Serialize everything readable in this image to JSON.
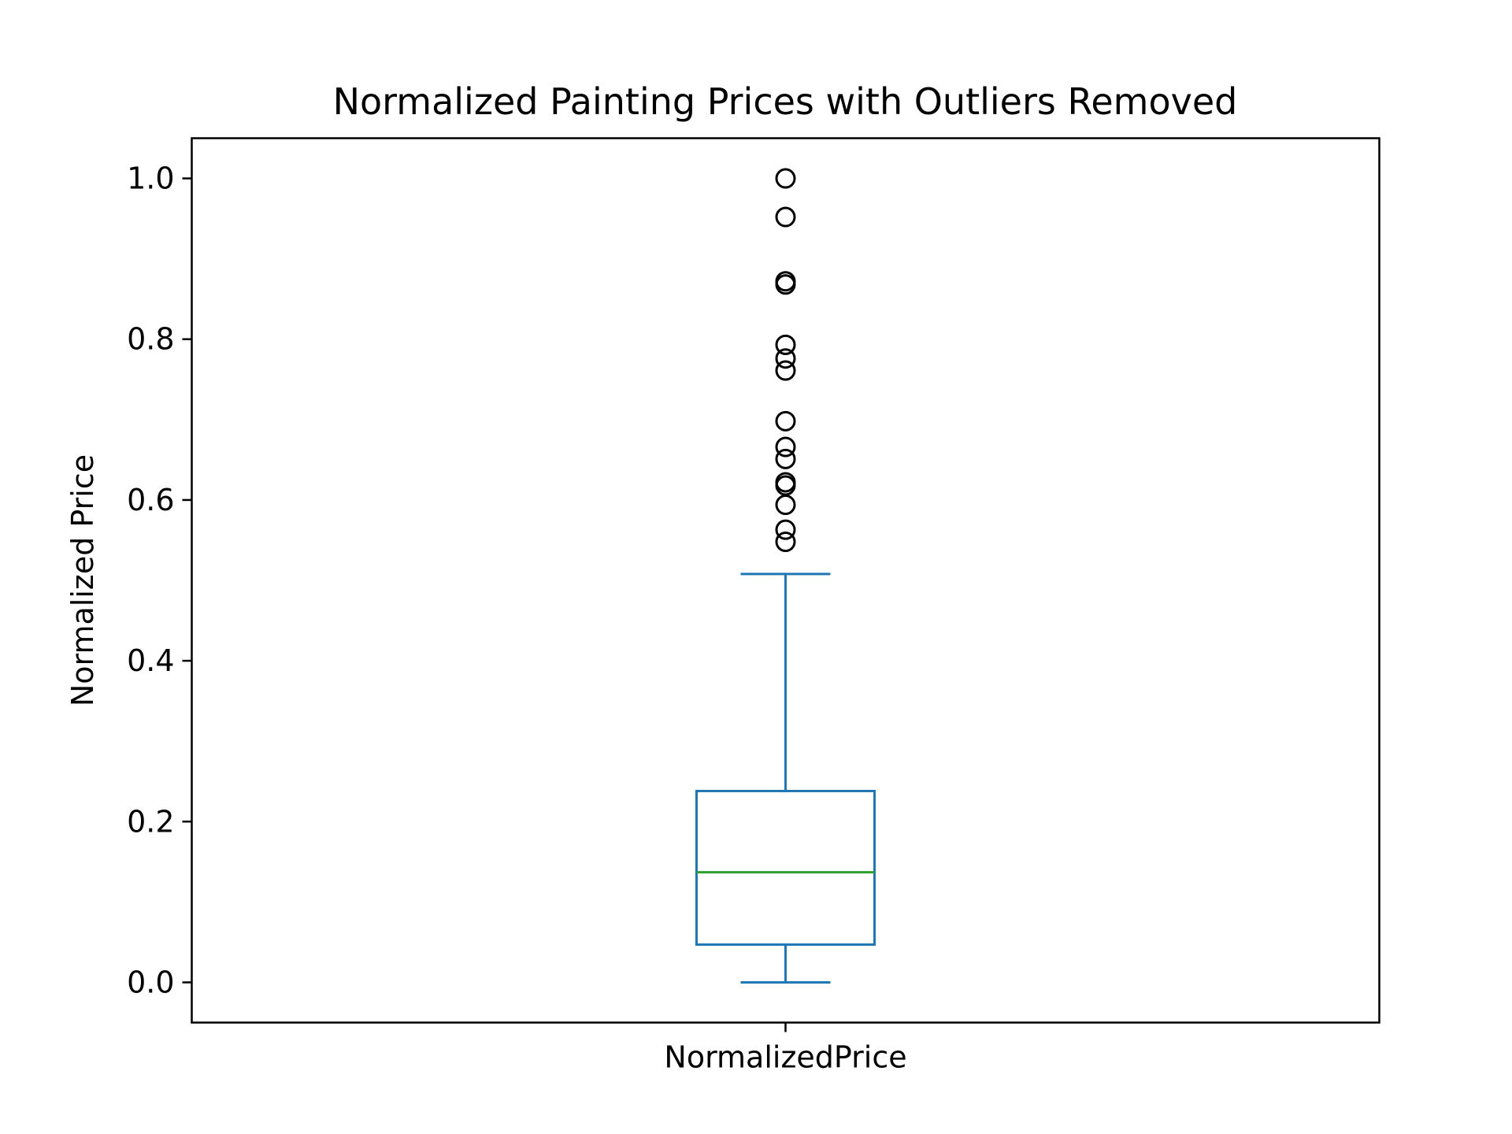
{
  "chart_data": {
    "type": "box",
    "title": "Normalized Painting Prices with Outliers Removed",
    "xlabel": "",
    "ylabel": "Normalized Price",
    "categories": [
      "NormalizedPrice"
    ],
    "ylim": [
      -0.05,
      1.05
    ],
    "yticks": [
      0.0,
      0.2,
      0.4,
      0.6,
      0.8,
      1.0
    ],
    "ytick_labels": [
      "0.0",
      "0.2",
      "0.4",
      "0.6",
      "0.8",
      "1.0"
    ],
    "boxes": [
      {
        "category": "NormalizedPrice",
        "whisker_low": 0.0,
        "q1": 0.047,
        "median": 0.137,
        "q3": 0.238,
        "whisker_high": 0.508,
        "outliers": [
          0.548,
          0.563,
          0.594,
          0.618,
          0.622,
          0.651,
          0.666,
          0.698,
          0.761,
          0.776,
          0.793,
          0.868,
          0.872,
          0.952,
          1.0
        ]
      }
    ],
    "colors": {
      "box": "#1f77b4",
      "median": "#2ca02c",
      "outlier": "#000000",
      "axes": "#000000"
    },
    "grid": false,
    "legend": "none"
  }
}
